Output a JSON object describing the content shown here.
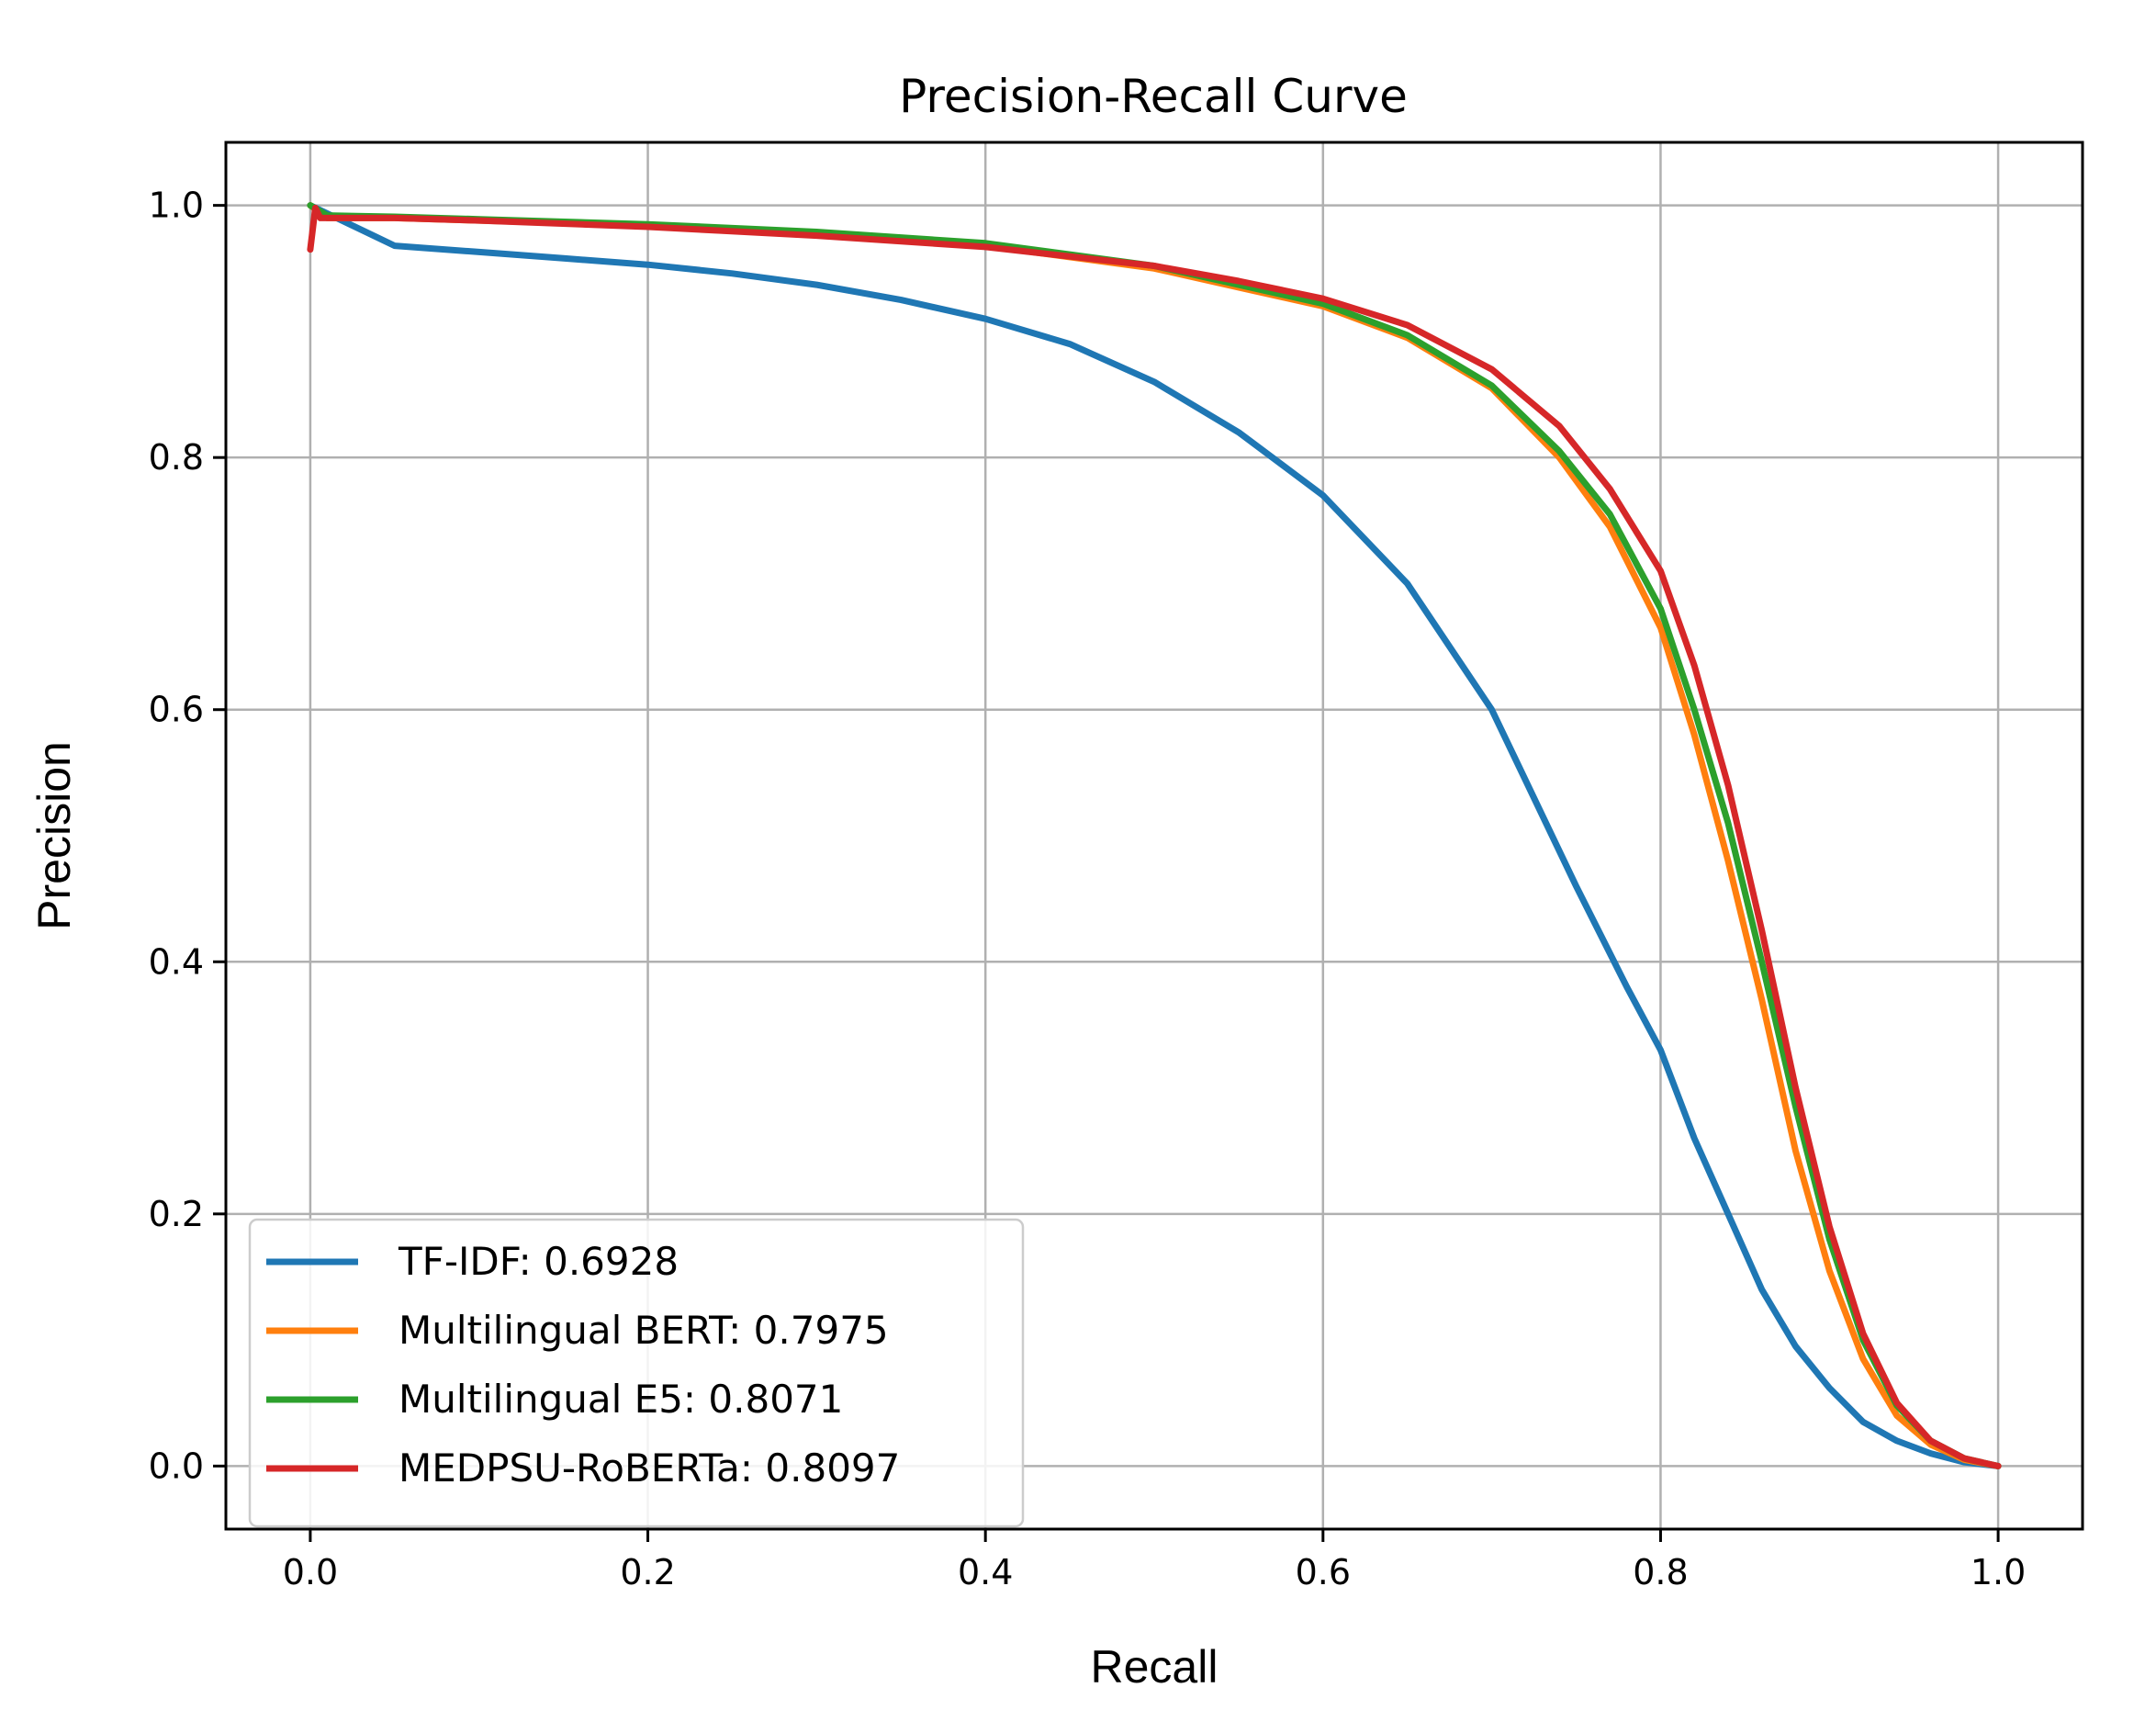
{
  "chart_data": {
    "type": "line",
    "title": "Precision-Recall Curve",
    "xlabel": "Recall",
    "ylabel": "Precision",
    "xlim": [
      -0.05,
      1.05
    ],
    "ylim": [
      -0.05,
      1.05
    ],
    "xticks": [
      "0.0",
      "0.2",
      "0.4",
      "0.6",
      "0.8",
      "1.0"
    ],
    "yticks": [
      "0.0",
      "0.2",
      "0.4",
      "0.6",
      "0.8",
      "1.0"
    ],
    "grid": true,
    "legend_position": "lower-left",
    "series": [
      {
        "name": "TF-IDF: 0.6928",
        "color": "#1f77b4",
        "x": [
          0.0,
          0.05,
          0.1,
          0.15,
          0.2,
          0.25,
          0.3,
          0.35,
          0.4,
          0.45,
          0.5,
          0.55,
          0.6,
          0.65,
          0.7,
          0.75,
          0.78,
          0.8,
          0.82,
          0.84,
          0.86,
          0.88,
          0.9,
          0.92,
          0.94,
          0.96,
          0.98,
          1.0
        ],
        "y": [
          1.0,
          0.968,
          0.963,
          0.958,
          0.953,
          0.946,
          0.937,
          0.925,
          0.91,
          0.89,
          0.86,
          0.82,
          0.77,
          0.7,
          0.6,
          0.46,
          0.38,
          0.33,
          0.26,
          0.2,
          0.14,
          0.095,
          0.062,
          0.035,
          0.02,
          0.01,
          0.003,
          0.0
        ]
      },
      {
        "name": "Multilingual BERT: 0.7975",
        "color": "#ff7f0e",
        "x": [
          0.0,
          0.01,
          0.05,
          0.1,
          0.2,
          0.3,
          0.4,
          0.5,
          0.55,
          0.6,
          0.65,
          0.7,
          0.74,
          0.77,
          0.8,
          0.82,
          0.84,
          0.86,
          0.88,
          0.9,
          0.92,
          0.94,
          0.96,
          0.98,
          1.0
        ],
        "y": [
          1.0,
          0.99,
          0.99,
          0.988,
          0.984,
          0.977,
          0.968,
          0.95,
          0.935,
          0.92,
          0.895,
          0.855,
          0.8,
          0.745,
          0.665,
          0.58,
          0.48,
          0.37,
          0.25,
          0.155,
          0.085,
          0.04,
          0.017,
          0.005,
          0.0
        ]
      },
      {
        "name": "Multilingual E5: 0.8071",
        "color": "#2ca02c",
        "x": [
          0.0,
          0.01,
          0.05,
          0.1,
          0.2,
          0.3,
          0.4,
          0.5,
          0.55,
          0.6,
          0.65,
          0.7,
          0.74,
          0.77,
          0.8,
          0.82,
          0.84,
          0.86,
          0.88,
          0.9,
          0.92,
          0.94,
          0.96,
          0.98,
          1.0
        ],
        "y": [
          1.0,
          0.992,
          0.991,
          0.989,
          0.985,
          0.979,
          0.97,
          0.952,
          0.937,
          0.922,
          0.897,
          0.857,
          0.805,
          0.755,
          0.68,
          0.6,
          0.51,
          0.4,
          0.285,
          0.18,
          0.1,
          0.048,
          0.02,
          0.006,
          0.0
        ]
      },
      {
        "name": "MEDPSU-RoBERTa: 0.8097",
        "color": "#d62728",
        "x": [
          0.0,
          0.003,
          0.006,
          0.01,
          0.05,
          0.1,
          0.2,
          0.3,
          0.4,
          0.5,
          0.55,
          0.6,
          0.65,
          0.7,
          0.74,
          0.77,
          0.8,
          0.82,
          0.84,
          0.86,
          0.88,
          0.9,
          0.92,
          0.94,
          0.96,
          0.98,
          1.0
        ],
        "y": [
          0.965,
          0.998,
          0.99,
          0.99,
          0.99,
          0.988,
          0.983,
          0.976,
          0.967,
          0.952,
          0.94,
          0.926,
          0.905,
          0.87,
          0.825,
          0.775,
          0.71,
          0.635,
          0.54,
          0.425,
          0.3,
          0.19,
          0.105,
          0.05,
          0.02,
          0.006,
          0.0
        ]
      }
    ]
  }
}
